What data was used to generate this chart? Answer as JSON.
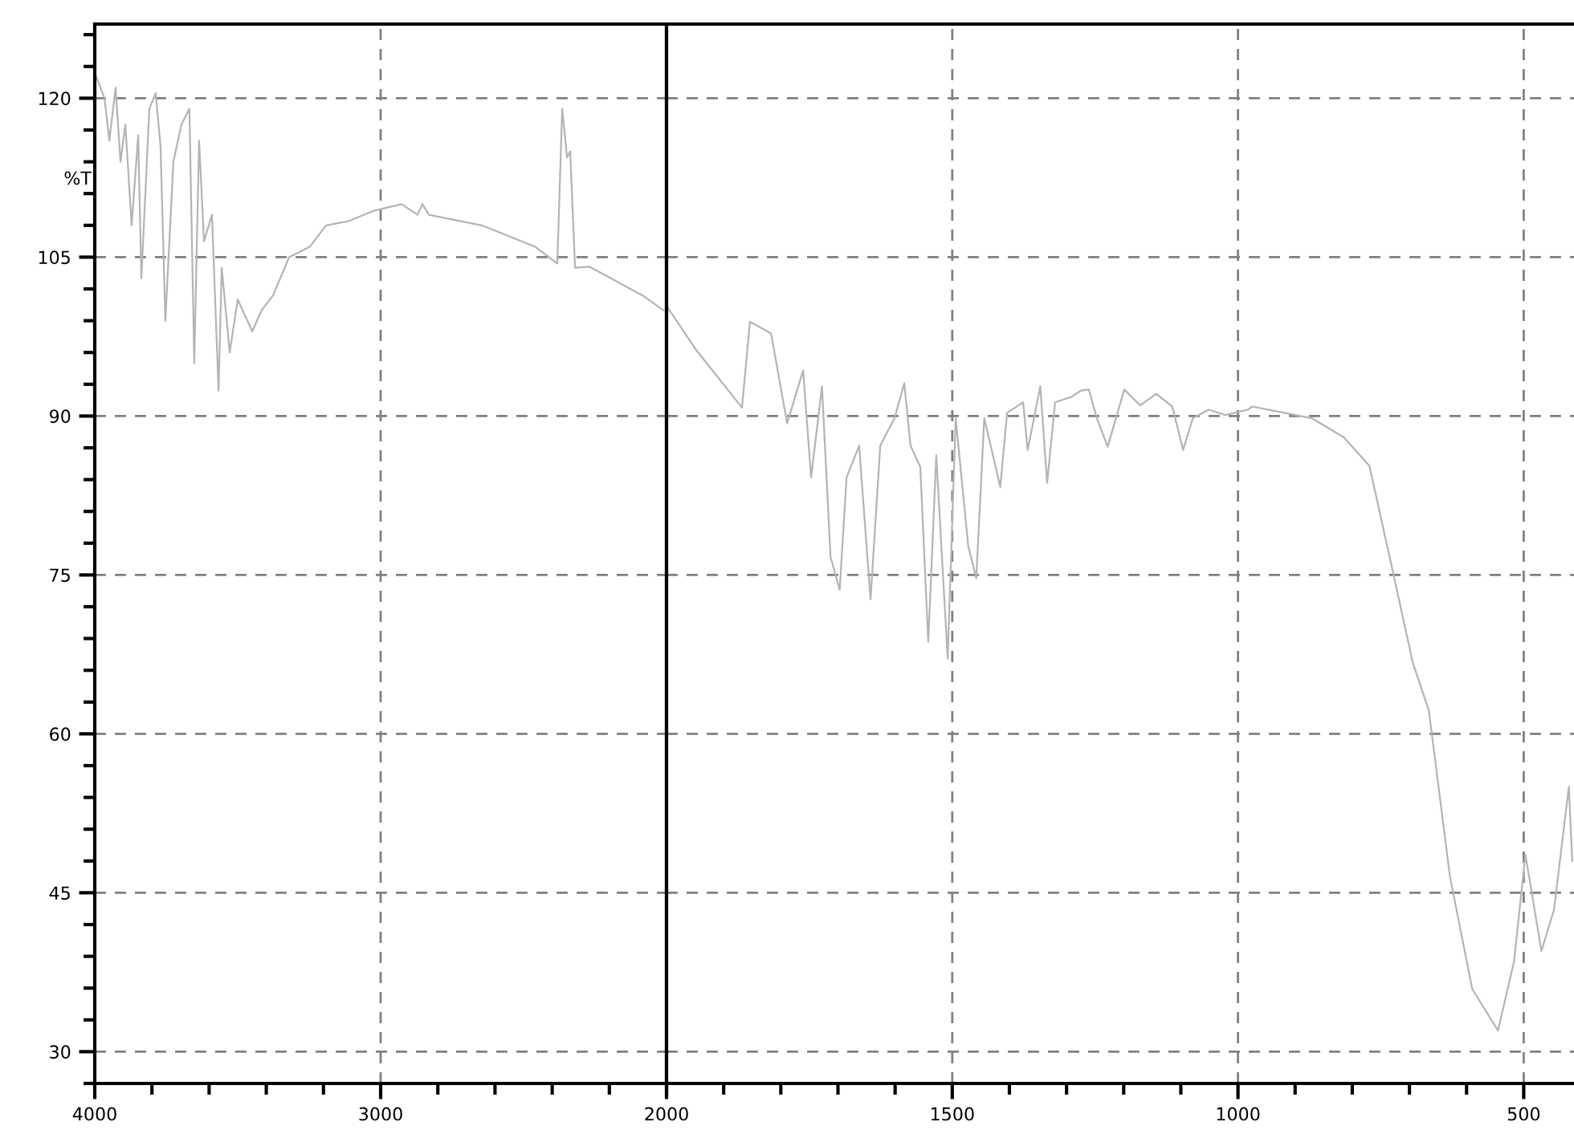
{
  "chart_data": [
    {
      "type": "line",
      "ylabel": "%T",
      "xlim": [
        4000,
        2000
      ],
      "ylim": [
        27,
        127
      ],
      "xticks": [
        4000,
        3000,
        2000
      ],
      "yticks": [
        30,
        45,
        60,
        75,
        90,
        105,
        120
      ],
      "grid": true,
      "line_style": "solid",
      "series": [
        {
          "color": "#b4b4b4",
          "x": [
            3994,
            3966,
            3949,
            3927,
            3910,
            3893,
            3871,
            3848,
            3837,
            3809,
            3787,
            3770,
            3753,
            3725,
            3697,
            3669,
            3652,
            3635,
            3618,
            3590,
            3567,
            3556,
            3528,
            3500,
            3449,
            3416,
            3376,
            3320,
            3247,
            3191,
            3112,
            3022,
            2927,
            2871,
            2854,
            2831,
            2646,
            2461,
            2382,
            2365,
            2348,
            2337,
            2320,
            2270,
            2085,
            2011
          ],
          "values": [
            122,
            120,
            116,
            121,
            114,
            117.5,
            108,
            116.5,
            103,
            119,
            120.5,
            115.5,
            99,
            114,
            117.5,
            119,
            95,
            116,
            106.5,
            109,
            92.4,
            104,
            96,
            101,
            98,
            100,
            101.4,
            105,
            106,
            108,
            108.4,
            109.4,
            110,
            109,
            110,
            109,
            108,
            106,
            104.4,
            119,
            114.4,
            115,
            104,
            104.1,
            101.4,
            100
          ]
        }
      ]
    },
    {
      "type": "line",
      "xlim": [
        2000,
        412
      ],
      "ylim": [
        27,
        127
      ],
      "xticks": [
        1500,
        1000,
        500
      ],
      "yticks": [
        30,
        45,
        60,
        75,
        90,
        105,
        120
      ],
      "grid": true,
      "tick_labels": "x",
      "line_style": "solid",
      "series": [
        {
          "color": "#b4b4b4",
          "x": [
            2000,
            1949,
            1868,
            1854,
            1817,
            1789,
            1761,
            1747,
            1728,
            1713,
            1697,
            1685,
            1663,
            1643,
            1626,
            1601,
            1584,
            1573,
            1556,
            1542,
            1528,
            1508,
            1494,
            1472,
            1458,
            1444,
            1416,
            1404,
            1376,
            1368,
            1346,
            1334,
            1320,
            1292,
            1275,
            1261,
            1247,
            1228,
            1199,
            1171,
            1143,
            1115,
            1096,
            1079,
            1051,
            1022,
            983,
            975,
            871,
            815,
            770,
            731,
            694,
            666,
            629,
            590,
            545,
            517,
            497,
            469,
            447,
            421,
            415
          ],
          "values": [
            100.4,
            96.3,
            90.8,
            98.9,
            97.8,
            89.3,
            94.3,
            84.2,
            92.8,
            76.7,
            73.6,
            84.2,
            87.2,
            72.7,
            87.2,
            89.8,
            93.1,
            87.2,
            85.2,
            68.7,
            86.3,
            67.1,
            89.8,
            77.7,
            74.7,
            89.8,
            83.3,
            90.3,
            91.3,
            86.8,
            92.8,
            83.7,
            91.3,
            91.8,
            92.4,
            92.5,
            89.8,
            87.1,
            92.5,
            91,
            92.1,
            90.9,
            86.8,
            89.8,
            90.6,
            90.1,
            90.6,
            90.9,
            89.8,
            88,
            85.3,
            75.8,
            66.7,
            62.2,
            46.5,
            35.9,
            32,
            38.5,
            48.6,
            39.5,
            43.4,
            55,
            48
          ]
        }
      ]
    }
  ]
}
